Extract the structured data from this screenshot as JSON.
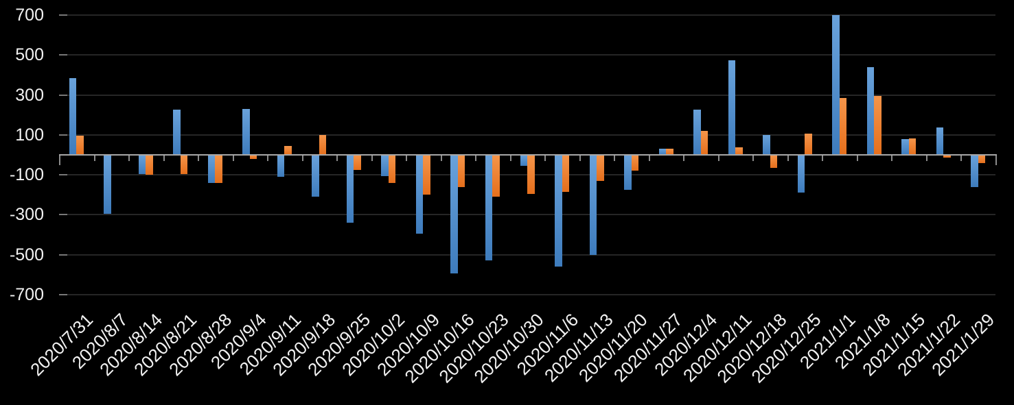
{
  "chart_data": {
    "type": "bar",
    "title": "",
    "xlabel": "",
    "ylabel": "",
    "categories": [
      "2020/7/31",
      "2020/8/7",
      "2020/8/14",
      "2020/8/21",
      "2020/8/28",
      "2020/9/4",
      "2020/9/11",
      "2020/9/18",
      "2020/9/25",
      "2020/10/2",
      "2020/10/9",
      "2020/10/16",
      "2020/10/23",
      "2020/10/30",
      "2020/11/6",
      "2020/11/13",
      "2020/11/20",
      "2020/11/27",
      "2020/12/4",
      "2020/12/11",
      "2020/12/18",
      "2020/12/25",
      "2021/1/1",
      "2021/1/8",
      "2021/1/15",
      "2021/1/22",
      "2021/1/29"
    ],
    "series": [
      {
        "name": "series-1-blue",
        "color_top": "#69A2DB",
        "color_bottom": "#3E7CBD",
        "values": [
          385,
          -295,
          -95,
          228,
          -140,
          230,
          -110,
          -210,
          -340,
          -105,
          -395,
          -595,
          -530,
          -55,
          -560,
          -500,
          -175,
          30,
          228,
          475,
          100,
          -190,
          700,
          440,
          78,
          138,
          -160
        ]
      },
      {
        "name": "series-2-orange",
        "color_top": "#F5954A",
        "color_bottom": "#E56F1C",
        "values": [
          95,
          0,
          -100,
          -95,
          -140,
          -20,
          45,
          100,
          -75,
          -140,
          -200,
          -160,
          -210,
          -195,
          -185,
          -130,
          -80,
          30,
          120,
          38,
          -65,
          108,
          285,
          295,
          83,
          -15,
          -40
        ]
      }
    ],
    "ylim": [
      -700,
      700
    ],
    "yticks": [
      700,
      500,
      300,
      100,
      -100,
      -300,
      -500,
      -700
    ],
    "grid": true,
    "legend": "none",
    "background_color": "#000000",
    "axis_color": "#A8A8A8",
    "gridline_color": "#262626",
    "tick_color": "#8C8C8C",
    "label_color": "#F2F2F2"
  }
}
